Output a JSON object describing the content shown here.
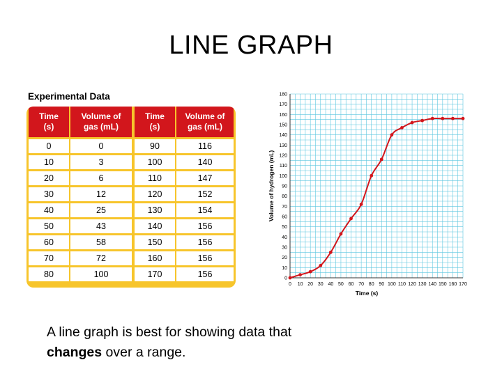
{
  "slide": {
    "title": "LINE GRAPH",
    "caption_before": "A line graph is best for showing data that",
    "caption_bold": "changes",
    "caption_after": " over a range."
  },
  "table": {
    "heading": "Experimental Data",
    "headers": [
      "Time\n(s)",
      "Volume of\ngas (mL)",
      "Time\n(s)",
      "Volume of\ngas (mL)"
    ],
    "rows": [
      [
        "0",
        "0",
        "90",
        "116"
      ],
      [
        "10",
        "3",
        "100",
        "140"
      ],
      [
        "20",
        "6",
        "110",
        "147"
      ],
      [
        "30",
        "12",
        "120",
        "152"
      ],
      [
        "40",
        "25",
        "130",
        "154"
      ],
      [
        "50",
        "43",
        "140",
        "156"
      ],
      [
        "60",
        "58",
        "150",
        "156"
      ],
      [
        "70",
        "72",
        "160",
        "156"
      ],
      [
        "80",
        "100",
        "170",
        "156"
      ]
    ],
    "colors": {
      "header_bg": "#d2161c",
      "frame": "#f7c52b"
    }
  },
  "chart_data": {
    "type": "line",
    "title": "",
    "xlabel": "Time (s)",
    "ylabel": "Volume of hydrogen (mL)",
    "xlim": [
      0,
      170
    ],
    "ylim": [
      0,
      180
    ],
    "x_ticks": [
      0,
      10,
      20,
      30,
      40,
      50,
      60,
      70,
      80,
      90,
      100,
      110,
      120,
      130,
      140,
      150,
      160,
      170
    ],
    "y_ticks": [
      0,
      10,
      20,
      30,
      40,
      50,
      60,
      70,
      80,
      90,
      100,
      110,
      120,
      130,
      140,
      150,
      160,
      170,
      180
    ],
    "grid": true,
    "series": [
      {
        "x": [
          0,
          10,
          20,
          30,
          40,
          50,
          60,
          70,
          80,
          90,
          100,
          110,
          120,
          130,
          140,
          150,
          160,
          170
        ],
        "y": [
          0,
          3,
          6,
          12,
          25,
          43,
          58,
          72,
          100,
          116,
          140,
          147,
          152,
          154,
          156,
          156,
          156,
          156
        ],
        "color": "#d2161c"
      }
    ],
    "colors": {
      "grid": "#5ec7e0",
      "line": "#d2161c"
    }
  }
}
